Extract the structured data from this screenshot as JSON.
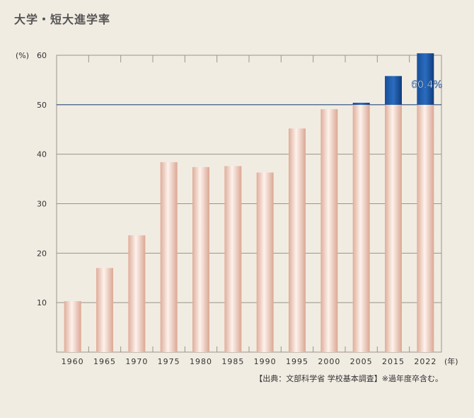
{
  "title": "大学・短大進学率",
  "source": "【出典：文部科学省 学校基本調査】※過年度卒含む。",
  "chart_data": {
    "type": "bar",
    "categories": [
      "1960",
      "1965",
      "1970",
      "1975",
      "1980",
      "1985",
      "1990",
      "1995",
      "2000",
      "2005",
      "2015",
      "2022"
    ],
    "values": [
      10.3,
      17.0,
      23.6,
      38.4,
      37.4,
      37.6,
      36.3,
      45.2,
      49.1,
      50.4,
      55.8,
      60.4
    ],
    "ylim": [
      0,
      60
    ],
    "yticks": [
      "10",
      "20",
      "30",
      "40",
      "50",
      "60"
    ],
    "y_unit": "(%)",
    "x_unit": "(年)",
    "grid": true,
    "reference_line": 50,
    "annotation": "60.4%",
    "colors": {
      "bar_light": "#fbeee6",
      "bar_dark": "#e2b09d",
      "above_50_top": "#1c5aa8",
      "above_50_dark": "#0f3c7c",
      "grid": "#9a948a",
      "ref_line": "#2a4a7c"
    }
  }
}
